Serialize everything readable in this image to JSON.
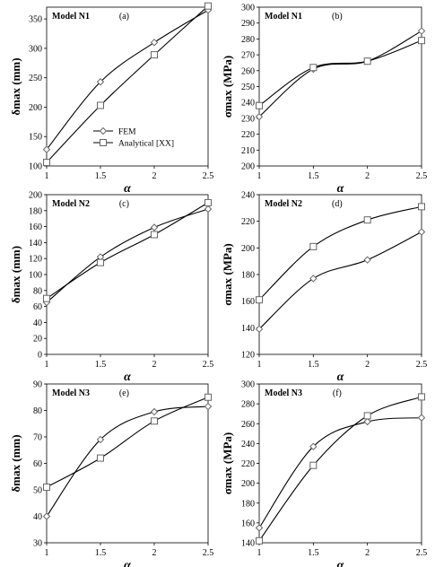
{
  "chart_data": [
    {
      "type": "line",
      "panel": "(a)",
      "title": "Model N1",
      "xlabel": "α",
      "ylabel": "δmax (mm)",
      "xlim": [
        1,
        2.5
      ],
      "ylim": [
        100,
        370
      ],
      "xticks": [
        "1",
        "1.5",
        "2",
        "2.5"
      ],
      "yticks": [
        100,
        150,
        200,
        250,
        300,
        350
      ],
      "x": [
        1,
        1.5,
        2,
        2.5
      ],
      "series": [
        {
          "name": "FEM",
          "marker": "diamond",
          "values": [
            128,
            243,
            310,
            365
          ]
        },
        {
          "name": "Analytical [XX]",
          "marker": "square",
          "values": [
            106,
            203,
            289,
            372
          ]
        }
      ],
      "legend": {
        "position": "lower-middle"
      }
    },
    {
      "type": "line",
      "panel": "(b)",
      "title": "Model N1",
      "xlabel": "α",
      "ylabel": "σmax (MPa)",
      "xlim": [
        1,
        2.5
      ],
      "ylim": [
        200,
        300
      ],
      "xticks": [
        "1",
        "1.5",
        "2",
        "2.5"
      ],
      "yticks": [
        200,
        210,
        220,
        230,
        240,
        250,
        260,
        270,
        280,
        290,
        300
      ],
      "x": [
        1,
        1.5,
        2,
        2.5
      ],
      "series": [
        {
          "name": "FEM",
          "marker": "diamond",
          "values": [
            231,
            261,
            266,
            285
          ]
        },
        {
          "name": "Analytical [XX]",
          "marker": "square",
          "values": [
            238,
            262,
            266,
            279
          ]
        }
      ]
    },
    {
      "type": "line",
      "panel": "(c)",
      "title": "Model N2",
      "xlabel": "α",
      "ylabel": "δmax (mm)",
      "xlim": [
        1,
        2.5
      ],
      "ylim": [
        0,
        200
      ],
      "xticks": [
        "1",
        "1.5",
        "2",
        "2.5"
      ],
      "yticks": [
        0,
        20,
        40,
        60,
        80,
        100,
        120,
        140,
        160,
        180,
        200
      ],
      "x": [
        1,
        1.5,
        2,
        2.5
      ],
      "series": [
        {
          "name": "FEM",
          "marker": "diamond",
          "values": [
            65,
            122,
            159,
            182
          ]
        },
        {
          "name": "Analytical [XX]",
          "marker": "square",
          "values": [
            70,
            115,
            150,
            190
          ]
        }
      ]
    },
    {
      "type": "line",
      "panel": "(d)",
      "title": "Model N2",
      "xlabel": "α",
      "ylabel": "σmax (MPa)",
      "xlim": [
        1,
        2.5
      ],
      "ylim": [
        120,
        240
      ],
      "xticks": [
        "1",
        "1.5",
        "2",
        "2.5"
      ],
      "yticks": [
        120,
        140,
        160,
        180,
        200,
        220,
        240
      ],
      "x": [
        1,
        1.5,
        2,
        2.5
      ],
      "series": [
        {
          "name": "FEM",
          "marker": "diamond",
          "values": [
            139,
            177,
            191,
            212
          ]
        },
        {
          "name": "Analytical [XX]",
          "marker": "square",
          "values": [
            161,
            201,
            221,
            231
          ]
        }
      ]
    },
    {
      "type": "line",
      "panel": "(e)",
      "title": "Model N3",
      "xlabel": "α",
      "ylabel": "δmax (mm)",
      "xlim": [
        1,
        2.5
      ],
      "ylim": [
        30,
        90
      ],
      "xticks": [
        "1",
        "1.5",
        "2",
        "2.5"
      ],
      "yticks": [
        30,
        40,
        50,
        60,
        70,
        80,
        90
      ],
      "x": [
        1,
        1.5,
        2,
        2.5
      ],
      "series": [
        {
          "name": "FEM",
          "marker": "diamond",
          "values": [
            40,
            69,
            79.5,
            81.5
          ]
        },
        {
          "name": "Analytical [XX]",
          "marker": "square",
          "values": [
            51,
            62,
            76,
            85
          ]
        }
      ]
    },
    {
      "type": "line",
      "panel": "(f)",
      "title": "Model N3",
      "xlabel": "α",
      "ylabel": "σmax (MPa)",
      "xlim": [
        1,
        2.5
      ],
      "ylim": [
        140,
        300
      ],
      "xticks": [
        "1",
        "1.5",
        "2",
        "2.5"
      ],
      "yticks": [
        140,
        160,
        180,
        200,
        220,
        240,
        260,
        280,
        300
      ],
      "x": [
        1,
        1.5,
        2,
        2.5
      ],
      "series": [
        {
          "name": "FEM",
          "marker": "diamond",
          "values": [
            155,
            237,
            262,
            266
          ]
        },
        {
          "name": "Analytical [XX]",
          "marker": "square",
          "values": [
            142,
            218,
            268,
            287
          ]
        }
      ]
    }
  ]
}
